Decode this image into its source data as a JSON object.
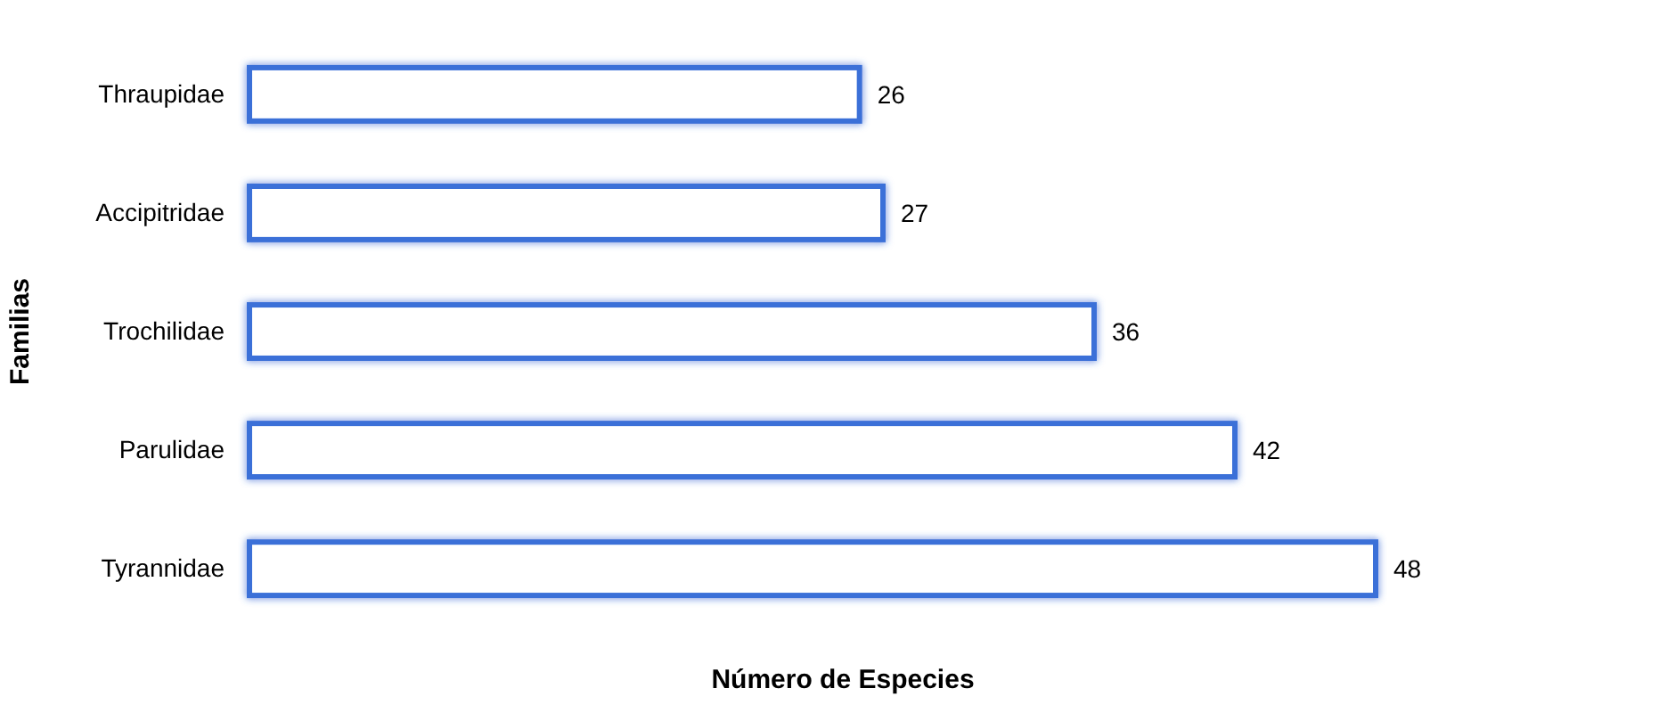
{
  "chart_data": {
    "type": "bar",
    "orientation": "horizontal",
    "xlabel": "Número de Especies",
    "ylabel": "Familias",
    "categories": [
      "Thraupidae",
      "Accipitridae",
      "Trochilidae",
      "Parulidae",
      "Tyrannidae"
    ],
    "values": [
      26,
      27,
      36,
      42,
      48
    ],
    "color": "#3a6fd8",
    "data_labels": true
  }
}
